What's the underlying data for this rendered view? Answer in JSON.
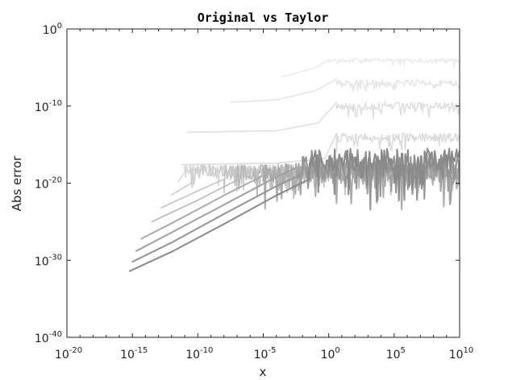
{
  "chart_data": {
    "type": "line",
    "title": "Original vs Taylor",
    "xlabel": "x",
    "ylabel": "Abs error",
    "xscale": "log",
    "yscale": "log",
    "xlim": [
      1e-20,
      10000000000.0
    ],
    "ylim": [
      1e-40,
      1
    ],
    "x_ticks": [
      {
        "base": "10",
        "exp": "-20"
      },
      {
        "base": "10",
        "exp": "-15"
      },
      {
        "base": "10",
        "exp": "-10"
      },
      {
        "base": "10",
        "exp": "-5"
      },
      {
        "base": "10",
        "exp": "0"
      },
      {
        "base": "10",
        "exp": "5"
      },
      {
        "base": "10",
        "exp": "10"
      }
    ],
    "y_ticks": [
      {
        "base": "10",
        "exp": "0"
      },
      {
        "base": "10",
        "exp": "-10"
      },
      {
        "base": "10",
        "exp": "-20"
      },
      {
        "base": "10",
        "exp": "-30"
      },
      {
        "base": "10",
        "exp": "-40"
      }
    ],
    "grid": false,
    "legend": "none",
    "series": [
      {
        "color": "#8a8a8a",
        "points": [
          [
            -15.2,
            -31.4
          ],
          [
            -12.0,
            -28.9
          ],
          [
            -8.0,
            -25.3
          ],
          [
            -4.0,
            -21.6
          ],
          [
            -1.5,
            -19.5
          ]
        ],
        "noise_from": -1.5,
        "noise_level": -15.5,
        "noise_amp": 3.0,
        "x_end": 10
      },
      {
        "color": "#949494",
        "points": [
          [
            -15.0,
            -30.2
          ],
          [
            -12.0,
            -27.7
          ],
          [
            -8.0,
            -24.0
          ],
          [
            -4.0,
            -20.4
          ],
          [
            -2.0,
            -18.8
          ]
        ],
        "noise_from": -2.0,
        "noise_level": -16.5,
        "noise_amp": 3.0,
        "x_end": 10
      },
      {
        "color": "#a0a0a0",
        "points": [
          [
            -14.7,
            -28.8
          ],
          [
            -12.0,
            -26.4
          ],
          [
            -8.0,
            -22.8
          ],
          [
            -4.0,
            -19.2
          ],
          [
            -2.5,
            -18.0
          ]
        ],
        "noise_from": -2.5,
        "noise_level": -17.0,
        "noise_amp": 2.5,
        "x_end": 10
      },
      {
        "color": "#ababab",
        "points": [
          [
            -14.3,
            -27.2
          ],
          [
            -12.0,
            -25.2
          ],
          [
            -8.0,
            -21.6
          ],
          [
            -5.0,
            -19.0
          ]
        ],
        "noise_from": -5.0,
        "noise_level": -17.5,
        "noise_amp": 2.5,
        "x_end": 10
      },
      {
        "color": "#b8b8b8",
        "points": [
          [
            -13.5,
            -25.0
          ],
          [
            -10.0,
            -22.2
          ],
          [
            -7.0,
            -19.6
          ]
        ],
        "noise_from": -7.0,
        "noise_level": -17.5,
        "noise_amp": 2.0,
        "x_end": 10
      },
      {
        "color": "#c4c4c4",
        "points": [
          [
            -12.8,
            -23.2
          ],
          [
            -10.0,
            -21.0
          ],
          [
            -8.0,
            -19.5
          ]
        ],
        "noise_from": -8.0,
        "noise_level": -17.6,
        "noise_amp": 1.8,
        "x_end": 10
      },
      {
        "color": "#cfcfcf",
        "points": [
          [
            -12.0,
            -21.5
          ],
          [
            -10.5,
            -20.0
          ]
        ],
        "noise_from": -10.5,
        "noise_level": -17.6,
        "noise_amp": 1.5,
        "x_end": 10
      },
      {
        "color": "#d9d9d9",
        "points": [
          [
            -11.5,
            -19.8
          ],
          [
            -11.0,
            -18.6
          ]
        ],
        "noise_from": -11.0,
        "noise_level": -17.6,
        "noise_amp": 1.2,
        "x_end": 0.5
      },
      {
        "color": "#dcdcdc",
        "points": [
          [
            -11.2,
            -17.6
          ],
          [
            -4.0,
            -17.4
          ],
          [
            -0.3,
            -16.8
          ],
          [
            0.6,
            -13.5
          ]
        ],
        "noise_from": 0.6,
        "noise_level": -13.5,
        "noise_amp": 1.2,
        "x_end": 10
      },
      {
        "color": "#e0e0e0",
        "points": [
          [
            -10.8,
            -13.4
          ],
          [
            -4.0,
            -13.2
          ],
          [
            -0.8,
            -12.2
          ],
          [
            0.6,
            -9.5
          ]
        ],
        "noise_from": 0.6,
        "noise_level": -9.5,
        "noise_amp": 1.0,
        "x_end": 10
      },
      {
        "color": "#e6e6e6",
        "points": [
          [
            -7.5,
            -9.5
          ],
          [
            -4.0,
            -9.2
          ],
          [
            -1.0,
            -8.0
          ],
          [
            0.6,
            -6.5
          ]
        ],
        "noise_from": 0.6,
        "noise_level": -6.6,
        "noise_amp": 0.8,
        "x_end": 10
      },
      {
        "color": "#ececec",
        "points": [
          [
            -3.5,
            -6.2
          ],
          [
            -1.0,
            -5.0
          ],
          [
            0.0,
            -4.0
          ]
        ],
        "noise_from": 0.0,
        "noise_level": -3.8,
        "noise_amp": 0.5,
        "x_end": 10
      }
    ]
  }
}
